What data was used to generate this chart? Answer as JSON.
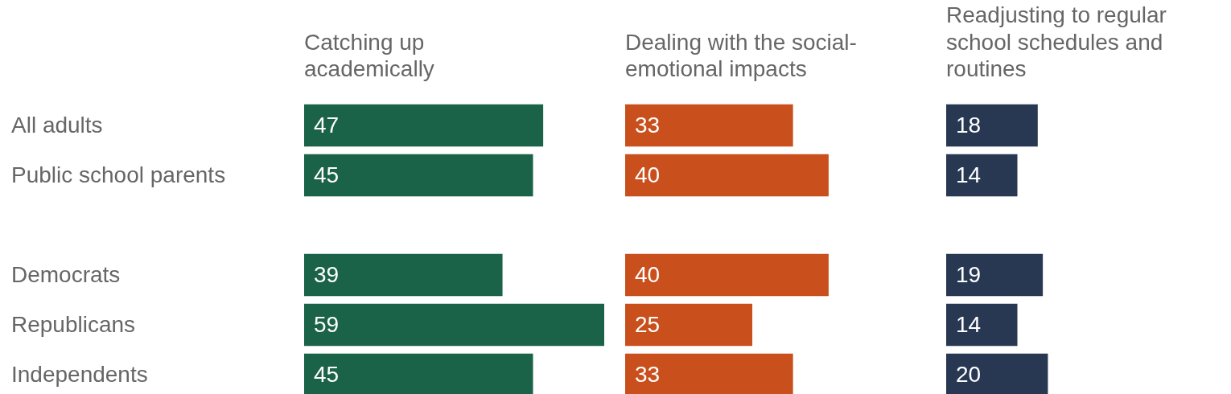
{
  "chart_data": [
    {
      "type": "bar",
      "orientation": "horizontal",
      "title": "Catching up academically",
      "categories": [
        "All adults",
        "Public school parents",
        null,
        "Democrats",
        "Republicans",
        "Independents"
      ],
      "values": [
        47,
        45,
        null,
        39,
        59,
        45
      ],
      "color": "#1a6349",
      "data_labels": true,
      "tick_labels": "y",
      "grid": false,
      "legend": false
    },
    {
      "type": "bar",
      "orientation": "horizontal",
      "title": "Dealing with the social-emotional impacts",
      "categories": [
        null,
        null,
        null,
        null,
        null,
        null
      ],
      "values": [
        33,
        40,
        null,
        40,
        25,
        33
      ],
      "color": "#c94f1c",
      "data_labels": true,
      "tick_labels": false,
      "grid": false,
      "legend": false
    },
    {
      "type": "bar",
      "orientation": "horizontal",
      "title": "Readjusting to regular school schedules and routines",
      "categories": [
        null,
        null,
        null,
        null,
        null,
        null
      ],
      "values": [
        18,
        14,
        null,
        19,
        14,
        20
      ],
      "color": "#283853",
      "data_labels": true,
      "tick_labels": false,
      "grid": false,
      "legend": false
    }
  ]
}
